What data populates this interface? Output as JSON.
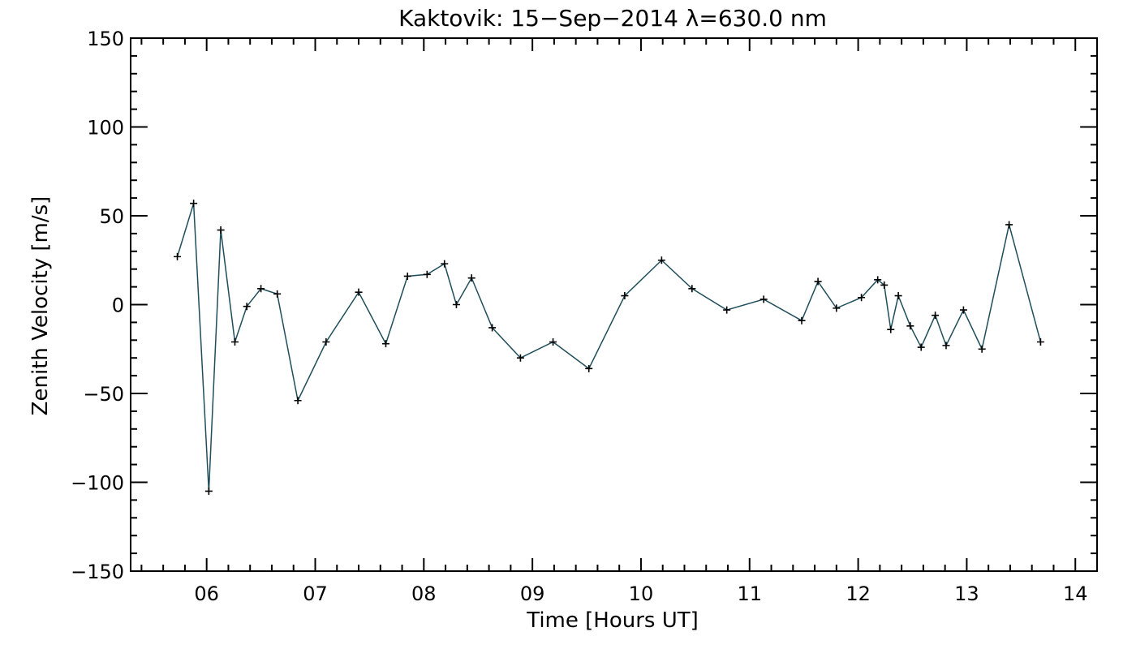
{
  "chart_data": {
    "type": "line",
    "title": "Kaktovik: 15−Sep−2014 λ=630.0 nm",
    "xlabel": "Time [Hours UT]",
    "ylabel": "Zenith Velocity [m/s]",
    "xlim": [
      5.3,
      14.2
    ],
    "ylim": [
      -150,
      150
    ],
    "x_ticks": [
      6,
      7,
      8,
      9,
      10,
      11,
      12,
      13,
      14
    ],
    "x_tick_labels": [
      "06",
      "07",
      "08",
      "09",
      "10",
      "11",
      "12",
      "13",
      "14"
    ],
    "y_ticks": [
      -150,
      -100,
      -50,
      0,
      50,
      100,
      150
    ],
    "y_tick_labels": [
      "−150",
      "−100",
      "−50",
      "0",
      "50",
      "100",
      "150"
    ],
    "grid": false,
    "line_color": "#1f4e5a",
    "marker": "+",
    "series": [
      {
        "x": [
          5.73,
          5.88,
          6.02,
          6.13,
          6.26,
          6.37,
          6.5,
          6.65,
          6.84,
          7.1,
          7.4,
          7.65,
          7.85,
          8.03,
          8.19,
          8.3,
          8.44,
          8.63,
          8.89,
          9.19,
          9.52,
          9.85,
          10.19,
          10.47,
          10.79,
          11.13,
          11.48,
          11.63,
          11.8,
          12.03,
          12.18,
          12.24,
          12.3,
          12.37,
          12.48,
          12.58,
          12.71,
          12.81,
          12.97,
          13.14,
          13.39,
          13.68
        ],
        "y": [
          27,
          57,
          -105,
          42,
          -21,
          -1,
          9,
          6,
          -54,
          -21,
          7,
          -22,
          16,
          17,
          23,
          0,
          15,
          -13,
          -30,
          -21,
          -36,
          5,
          25,
          9,
          -3,
          3,
          -9,
          13,
          -2,
          4,
          14,
          11,
          -14,
          5,
          -12,
          -24,
          -6,
          -23,
          -3,
          -25,
          45,
          -21
        ]
      }
    ]
  }
}
